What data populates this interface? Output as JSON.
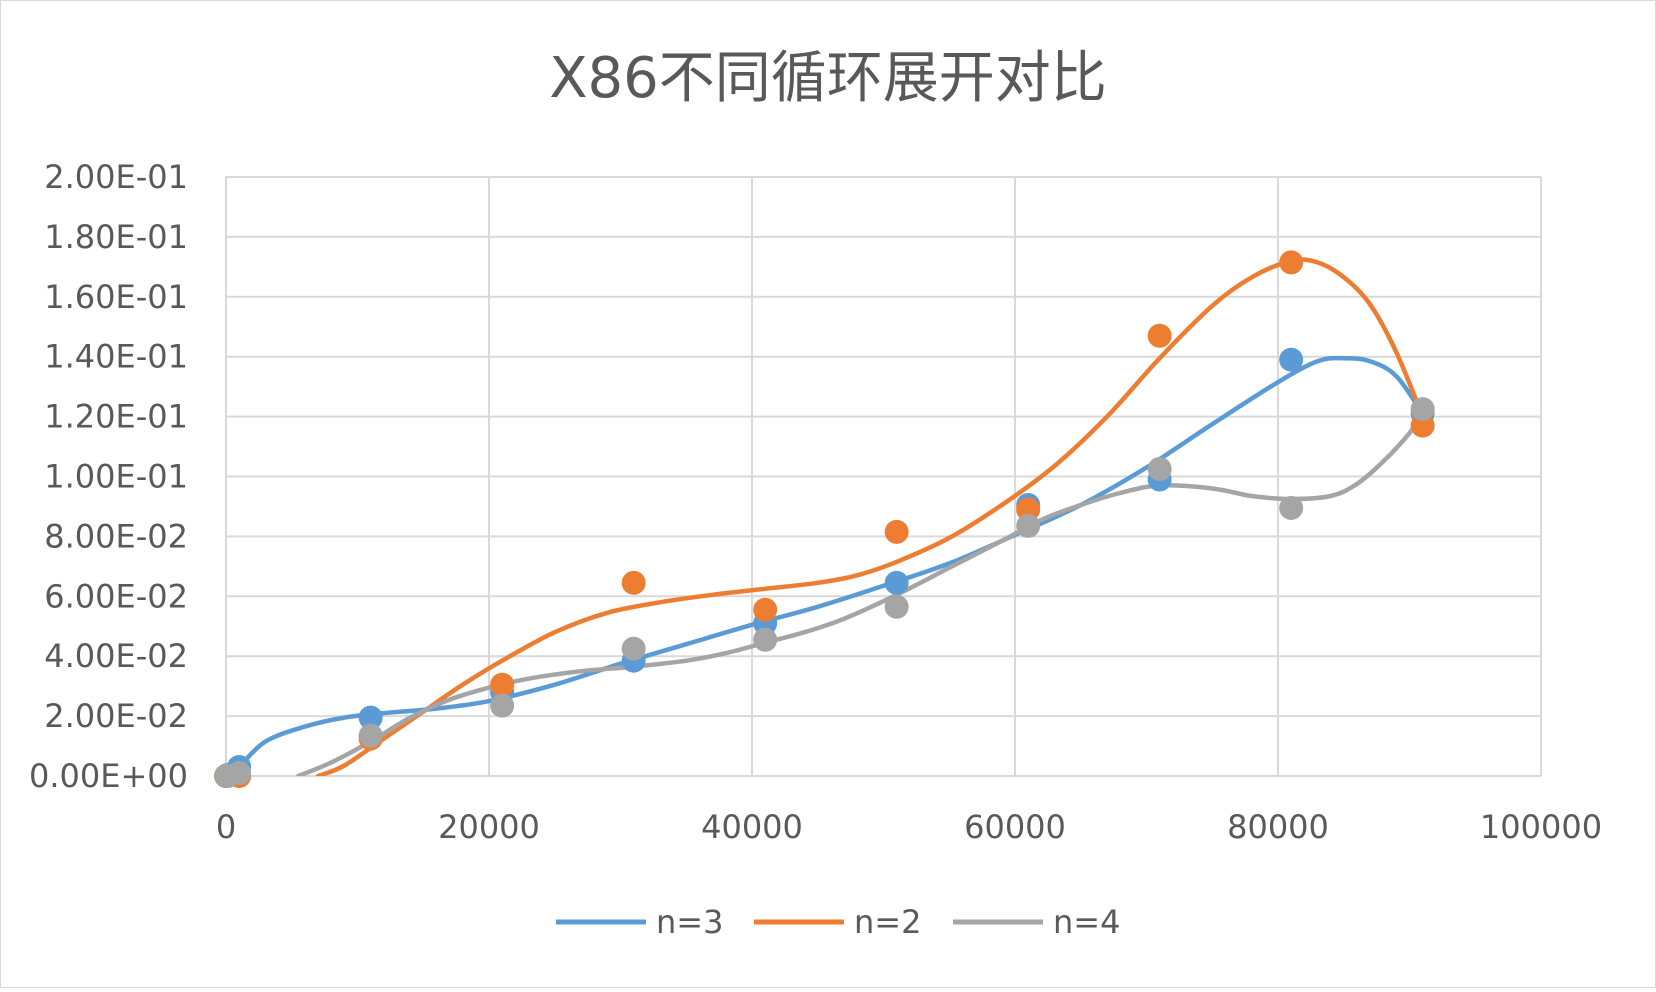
{
  "chart_data": {
    "type": "scatter",
    "title": "X86不同循环展开对比",
    "xlabel": "",
    "ylabel": "",
    "xlim": [
      0,
      100000
    ],
    "ylim": [
      0,
      0.2
    ],
    "x_ticks": [
      "0",
      "20000",
      "40000",
      "60000",
      "80000",
      "100000"
    ],
    "y_ticks": [
      "0.00E+00",
      "2.00E-02",
      "4.00E-02",
      "6.00E-02",
      "8.00E-02",
      "1.00E-01",
      "1.20E-01",
      "1.40E-01",
      "1.60E-01",
      "1.80E-01",
      "2.00E-01"
    ],
    "grid": true,
    "legend_position": "bottom",
    "trendline": "smoothed",
    "series": [
      {
        "name": "n=3",
        "color": "#5B9BD5",
        "points": [
          [
            10,
            0.0
          ],
          [
            100,
            0.0003
          ],
          [
            1000,
            0.003
          ],
          [
            11000,
            0.0195
          ],
          [
            21000,
            0.028
          ],
          [
            31000,
            0.0385
          ],
          [
            41000,
            0.051
          ],
          [
            51000,
            0.0645
          ],
          [
            61000,
            0.0905
          ],
          [
            71000,
            0.099
          ],
          [
            81000,
            0.139
          ],
          [
            91000,
            0.121
          ]
        ],
        "curve": [
          [
            1000,
            0.003
          ],
          [
            3000,
            0.0115
          ],
          [
            6000,
            0.0165
          ],
          [
            9000,
            0.0195
          ],
          [
            12000,
            0.021
          ],
          [
            16000,
            0.0225
          ],
          [
            20000,
            0.025
          ],
          [
            25000,
            0.0305
          ],
          [
            30000,
            0.0375
          ],
          [
            35000,
            0.044
          ],
          [
            40000,
            0.0505
          ],
          [
            45000,
            0.0565
          ],
          [
            50000,
            0.0635
          ],
          [
            55000,
            0.071
          ],
          [
            60000,
            0.0805
          ],
          [
            65000,
            0.0905
          ],
          [
            70000,
            0.103
          ],
          [
            75000,
            0.1175
          ],
          [
            80000,
            0.1315
          ],
          [
            83000,
            0.1385
          ],
          [
            85000,
            0.1395
          ],
          [
            87000,
            0.1385
          ],
          [
            89000,
            0.1335
          ],
          [
            91000,
            0.121
          ]
        ]
      },
      {
        "name": "n=2",
        "color": "#ED7D31",
        "points": [
          [
            10,
            0.0
          ],
          [
            100,
            0.0
          ],
          [
            1000,
            0.0
          ],
          [
            11000,
            0.0125
          ],
          [
            21000,
            0.0305
          ],
          [
            31000,
            0.0645
          ],
          [
            41000,
            0.0555
          ],
          [
            51000,
            0.0815
          ],
          [
            61000,
            0.089
          ],
          [
            71000,
            0.147
          ],
          [
            81000,
            0.1715
          ],
          [
            91000,
            0.117
          ]
        ],
        "curve": [
          [
            7000,
            0.0
          ],
          [
            9000,
            0.0035
          ],
          [
            12000,
            0.0125
          ],
          [
            15000,
            0.0215
          ],
          [
            18000,
            0.0305
          ],
          [
            21000,
            0.0385
          ],
          [
            25000,
            0.048
          ],
          [
            29000,
            0.0545
          ],
          [
            33000,
            0.058
          ],
          [
            37000,
            0.0605
          ],
          [
            41000,
            0.0625
          ],
          [
            45000,
            0.0645
          ],
          [
            48000,
            0.067
          ],
          [
            51000,
            0.0715
          ],
          [
            55000,
            0.0795
          ],
          [
            59000,
            0.0905
          ],
          [
            63000,
            0.1035
          ],
          [
            67000,
            0.12
          ],
          [
            71000,
            0.1395
          ],
          [
            75000,
            0.157
          ],
          [
            78000,
            0.1665
          ],
          [
            81000,
            0.172
          ],
          [
            83000,
            0.1715
          ],
          [
            85000,
            0.1665
          ],
          [
            87000,
            0.1575
          ],
          [
            89000,
            0.1415
          ],
          [
            91000,
            0.12
          ]
        ]
      },
      {
        "name": "n=4",
        "color": "#A5A5A5",
        "points": [
          [
            10,
            0.0
          ],
          [
            100,
            0.0
          ],
          [
            1000,
            0.001
          ],
          [
            11000,
            0.0135
          ],
          [
            21000,
            0.0235
          ],
          [
            31000,
            0.0425
          ],
          [
            41000,
            0.0455
          ],
          [
            51000,
            0.0565
          ],
          [
            61000,
            0.0835
          ],
          [
            71000,
            0.1025
          ],
          [
            81000,
            0.0895
          ],
          [
            91000,
            0.1225
          ]
        ],
        "curve": [
          [
            5500,
            0.0
          ],
          [
            8000,
            0.0045
          ],
          [
            11000,
            0.0115
          ],
          [
            14000,
            0.0195
          ],
          [
            17000,
            0.0255
          ],
          [
            20000,
            0.0295
          ],
          [
            23000,
            0.0325
          ],
          [
            27000,
            0.035
          ],
          [
            31000,
            0.0365
          ],
          [
            35000,
            0.0385
          ],
          [
            38000,
            0.041
          ],
          [
            41000,
            0.0445
          ],
          [
            44000,
            0.048
          ],
          [
            47000,
            0.0525
          ],
          [
            51000,
            0.0605
          ],
          [
            55000,
            0.0695
          ],
          [
            59000,
            0.0785
          ],
          [
            62000,
            0.0855
          ],
          [
            65000,
            0.0905
          ],
          [
            68000,
            0.0945
          ],
          [
            71000,
            0.097
          ],
          [
            75000,
            0.096
          ],
          [
            78000,
            0.0935
          ],
          [
            81000,
            0.0925
          ],
          [
            84000,
            0.0935
          ],
          [
            86000,
            0.0975
          ],
          [
            88000,
            0.105
          ],
          [
            90000,
            0.1145
          ],
          [
            91000,
            0.1215
          ]
        ]
      }
    ]
  }
}
